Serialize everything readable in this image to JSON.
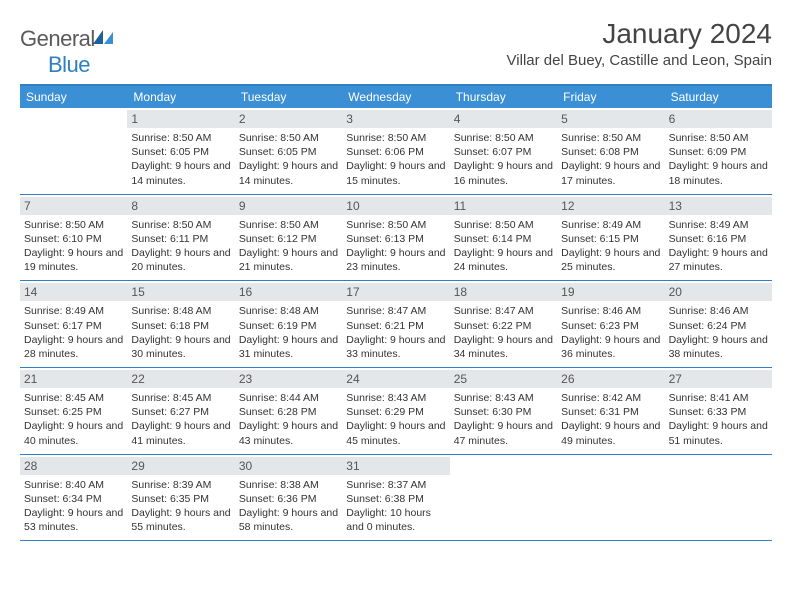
{
  "logo": {
    "general": "General",
    "blue": "Blue"
  },
  "title": "January 2024",
  "location": "Villar del Buey, Castille and Leon, Spain",
  "dow": [
    "Sunday",
    "Monday",
    "Tuesday",
    "Wednesday",
    "Thursday",
    "Friday",
    "Saturday"
  ],
  "colors": {
    "header_bg": "#3b8fd4",
    "border": "#2f7fc2",
    "daynum_bg": "#e4e7ea"
  },
  "weeks": [
    [
      {
        "n": "",
        "sr": "",
        "ss": "",
        "dl": ""
      },
      {
        "n": "1",
        "sr": "Sunrise: 8:50 AM",
        "ss": "Sunset: 6:05 PM",
        "dl": "Daylight: 9 hours and 14 minutes."
      },
      {
        "n": "2",
        "sr": "Sunrise: 8:50 AM",
        "ss": "Sunset: 6:05 PM",
        "dl": "Daylight: 9 hours and 14 minutes."
      },
      {
        "n": "3",
        "sr": "Sunrise: 8:50 AM",
        "ss": "Sunset: 6:06 PM",
        "dl": "Daylight: 9 hours and 15 minutes."
      },
      {
        "n": "4",
        "sr": "Sunrise: 8:50 AM",
        "ss": "Sunset: 6:07 PM",
        "dl": "Daylight: 9 hours and 16 minutes."
      },
      {
        "n": "5",
        "sr": "Sunrise: 8:50 AM",
        "ss": "Sunset: 6:08 PM",
        "dl": "Daylight: 9 hours and 17 minutes."
      },
      {
        "n": "6",
        "sr": "Sunrise: 8:50 AM",
        "ss": "Sunset: 6:09 PM",
        "dl": "Daylight: 9 hours and 18 minutes."
      }
    ],
    [
      {
        "n": "7",
        "sr": "Sunrise: 8:50 AM",
        "ss": "Sunset: 6:10 PM",
        "dl": "Daylight: 9 hours and 19 minutes."
      },
      {
        "n": "8",
        "sr": "Sunrise: 8:50 AM",
        "ss": "Sunset: 6:11 PM",
        "dl": "Daylight: 9 hours and 20 minutes."
      },
      {
        "n": "9",
        "sr": "Sunrise: 8:50 AM",
        "ss": "Sunset: 6:12 PM",
        "dl": "Daylight: 9 hours and 21 minutes."
      },
      {
        "n": "10",
        "sr": "Sunrise: 8:50 AM",
        "ss": "Sunset: 6:13 PM",
        "dl": "Daylight: 9 hours and 23 minutes."
      },
      {
        "n": "11",
        "sr": "Sunrise: 8:50 AM",
        "ss": "Sunset: 6:14 PM",
        "dl": "Daylight: 9 hours and 24 minutes."
      },
      {
        "n": "12",
        "sr": "Sunrise: 8:49 AM",
        "ss": "Sunset: 6:15 PM",
        "dl": "Daylight: 9 hours and 25 minutes."
      },
      {
        "n": "13",
        "sr": "Sunrise: 8:49 AM",
        "ss": "Sunset: 6:16 PM",
        "dl": "Daylight: 9 hours and 27 minutes."
      }
    ],
    [
      {
        "n": "14",
        "sr": "Sunrise: 8:49 AM",
        "ss": "Sunset: 6:17 PM",
        "dl": "Daylight: 9 hours and 28 minutes."
      },
      {
        "n": "15",
        "sr": "Sunrise: 8:48 AM",
        "ss": "Sunset: 6:18 PM",
        "dl": "Daylight: 9 hours and 30 minutes."
      },
      {
        "n": "16",
        "sr": "Sunrise: 8:48 AM",
        "ss": "Sunset: 6:19 PM",
        "dl": "Daylight: 9 hours and 31 minutes."
      },
      {
        "n": "17",
        "sr": "Sunrise: 8:47 AM",
        "ss": "Sunset: 6:21 PM",
        "dl": "Daylight: 9 hours and 33 minutes."
      },
      {
        "n": "18",
        "sr": "Sunrise: 8:47 AM",
        "ss": "Sunset: 6:22 PM",
        "dl": "Daylight: 9 hours and 34 minutes."
      },
      {
        "n": "19",
        "sr": "Sunrise: 8:46 AM",
        "ss": "Sunset: 6:23 PM",
        "dl": "Daylight: 9 hours and 36 minutes."
      },
      {
        "n": "20",
        "sr": "Sunrise: 8:46 AM",
        "ss": "Sunset: 6:24 PM",
        "dl": "Daylight: 9 hours and 38 minutes."
      }
    ],
    [
      {
        "n": "21",
        "sr": "Sunrise: 8:45 AM",
        "ss": "Sunset: 6:25 PM",
        "dl": "Daylight: 9 hours and 40 minutes."
      },
      {
        "n": "22",
        "sr": "Sunrise: 8:45 AM",
        "ss": "Sunset: 6:27 PM",
        "dl": "Daylight: 9 hours and 41 minutes."
      },
      {
        "n": "23",
        "sr": "Sunrise: 8:44 AM",
        "ss": "Sunset: 6:28 PM",
        "dl": "Daylight: 9 hours and 43 minutes."
      },
      {
        "n": "24",
        "sr": "Sunrise: 8:43 AM",
        "ss": "Sunset: 6:29 PM",
        "dl": "Daylight: 9 hours and 45 minutes."
      },
      {
        "n": "25",
        "sr": "Sunrise: 8:43 AM",
        "ss": "Sunset: 6:30 PM",
        "dl": "Daylight: 9 hours and 47 minutes."
      },
      {
        "n": "26",
        "sr": "Sunrise: 8:42 AM",
        "ss": "Sunset: 6:31 PM",
        "dl": "Daylight: 9 hours and 49 minutes."
      },
      {
        "n": "27",
        "sr": "Sunrise: 8:41 AM",
        "ss": "Sunset: 6:33 PM",
        "dl": "Daylight: 9 hours and 51 minutes."
      }
    ],
    [
      {
        "n": "28",
        "sr": "Sunrise: 8:40 AM",
        "ss": "Sunset: 6:34 PM",
        "dl": "Daylight: 9 hours and 53 minutes."
      },
      {
        "n": "29",
        "sr": "Sunrise: 8:39 AM",
        "ss": "Sunset: 6:35 PM",
        "dl": "Daylight: 9 hours and 55 minutes."
      },
      {
        "n": "30",
        "sr": "Sunrise: 8:38 AM",
        "ss": "Sunset: 6:36 PM",
        "dl": "Daylight: 9 hours and 58 minutes."
      },
      {
        "n": "31",
        "sr": "Sunrise: 8:37 AM",
        "ss": "Sunset: 6:38 PM",
        "dl": "Daylight: 10 hours and 0 minutes."
      },
      {
        "n": "",
        "sr": "",
        "ss": "",
        "dl": ""
      },
      {
        "n": "",
        "sr": "",
        "ss": "",
        "dl": ""
      },
      {
        "n": "",
        "sr": "",
        "ss": "",
        "dl": ""
      }
    ]
  ]
}
